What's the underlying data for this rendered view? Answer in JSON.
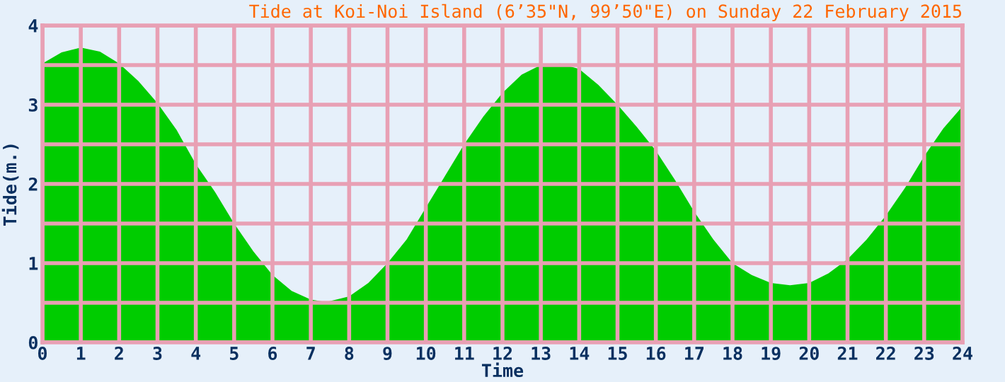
{
  "chart_data": {
    "type": "area",
    "title": "Tide at Koi-Noi Island (6’35\"N, 99’50\"E) on Sunday 22 February 2015",
    "xlabel": "Time",
    "ylabel": "Tide(m.)",
    "x": [
      0,
      0.5,
      1,
      1.5,
      2,
      2.5,
      3,
      3.5,
      4,
      4.5,
      5,
      5.5,
      6,
      6.5,
      7,
      7.4,
      8,
      8.5,
      9,
      9.5,
      10,
      10.5,
      11,
      11.5,
      12,
      12.5,
      13,
      13.5,
      14,
      14.5,
      15,
      15.5,
      16,
      16.5,
      17,
      17.5,
      18,
      18.5,
      19,
      19.5,
      20,
      20.5,
      21,
      21.5,
      22,
      22.5,
      23,
      23.5,
      24
    ],
    "series": [
      {
        "color": "#00cc00",
        "values": [
          3.52,
          3.66,
          3.72,
          3.67,
          3.52,
          3.3,
          3.02,
          2.68,
          2.25,
          1.9,
          1.5,
          1.15,
          0.85,
          0.65,
          0.54,
          0.51,
          0.58,
          0.75,
          1.0,
          1.3,
          1.7,
          2.1,
          2.5,
          2.85,
          3.15,
          3.38,
          3.5,
          3.52,
          3.45,
          3.25,
          3.0,
          2.72,
          2.42,
          2.05,
          1.65,
          1.3,
          1.0,
          0.85,
          0.75,
          0.72,
          0.75,
          0.87,
          1.05,
          1.3,
          1.6,
          1.95,
          2.35,
          2.7,
          2.98
        ]
      }
    ],
    "xlim": [
      0,
      24
    ],
    "xticks": [
      0,
      1,
      2,
      3,
      4,
      5,
      6,
      7,
      8,
      9,
      10,
      11,
      12,
      13,
      14,
      15,
      16,
      17,
      18,
      19,
      20,
      21,
      22,
      23,
      24
    ],
    "ylim": [
      0,
      4
    ],
    "yticks": [
      0,
      {
        "value": 0.5,
        "label": null
      },
      1,
      {
        "value": 1.5,
        "label": null
      },
      2,
      {
        "value": 2.5,
        "label": null
      },
      3,
      {
        "value": 3.5,
        "label": null
      },
      4
    ],
    "grid": true
  }
}
